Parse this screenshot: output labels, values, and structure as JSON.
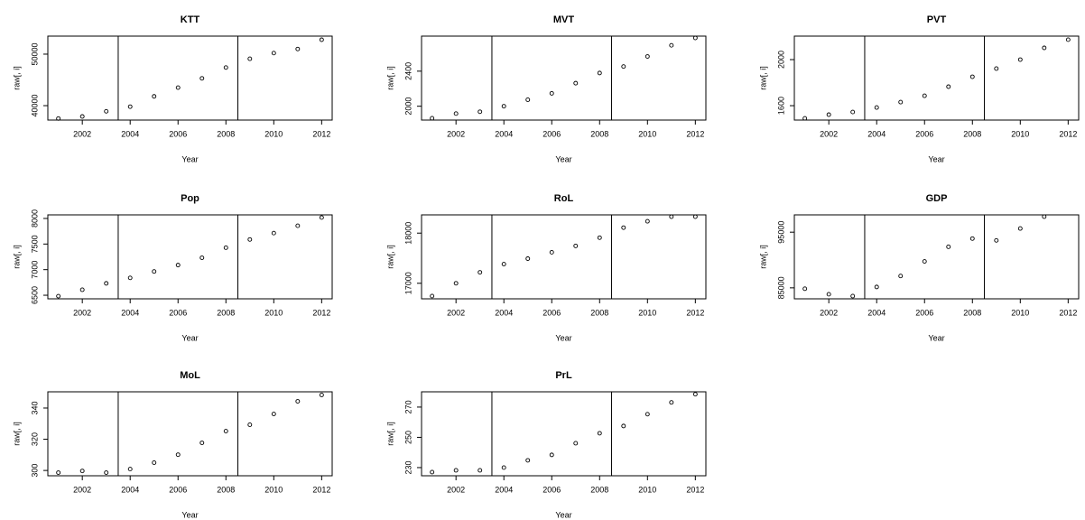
{
  "chart_data": [
    {
      "type": "scatter",
      "title": "KTT",
      "x_label": "Year",
      "y_label": "raw[, i]",
      "x": [
        2001,
        2002,
        2003,
        2004,
        2005,
        2006,
        2007,
        2008,
        2009,
        2010,
        2011,
        2012
      ],
      "values": [
        37500,
        37900,
        38900,
        39800,
        41800,
        43500,
        45300,
        47400,
        49100,
        50200,
        51000,
        52800
      ],
      "xlim": [
        2000.56,
        2012.44
      ],
      "ylim": [
        37200,
        53500
      ],
      "xticks": [
        2002,
        2004,
        2006,
        2008,
        2010,
        2012
      ],
      "yticks": [
        40000,
        50000
      ],
      "vlines": [
        2003.5,
        2008.5
      ],
      "color": "#000000"
    },
    {
      "type": "scatter",
      "title": "MVT",
      "x_label": "Year",
      "y_label": "raw[, i]",
      "x": [
        2001,
        2002,
        2003,
        2004,
        2005,
        2006,
        2007,
        2008,
        2009,
        2010,
        2011,
        2012
      ],
      "values": [
        1863,
        1916,
        1937,
        2000,
        2074,
        2147,
        2263,
        2379,
        2453,
        2568,
        2695,
        2779
      ],
      "xlim": [
        2000.56,
        2012.44
      ],
      "ylim": [
        1842,
        2800
      ],
      "xticks": [
        2002,
        2004,
        2006,
        2008,
        2010,
        2012
      ],
      "yticks": [
        2000,
        2400
      ],
      "vlines": [
        2003.5,
        2008.5
      ],
      "color": "#000000"
    },
    {
      "type": "scatter",
      "title": "PVT",
      "x_label": "Year",
      "y_label": "raw[, i]",
      "x": [
        2001,
        2002,
        2003,
        2004,
        2005,
        2006,
        2007,
        2008,
        2009,
        2010,
        2011,
        2012
      ],
      "values": [
        1490,
        1522,
        1545,
        1584,
        1631,
        1686,
        1765,
        1851,
        1922,
        2000,
        2102,
        2173
      ],
      "xlim": [
        2000.56,
        2012.44
      ],
      "ylim": [
        1475,
        2204
      ],
      "xticks": [
        2002,
        2004,
        2006,
        2008,
        2010,
        2012
      ],
      "yticks": [
        1600,
        2000
      ],
      "vlines": [
        2003.5,
        2008.5
      ],
      "color": "#000000"
    },
    {
      "type": "scatter",
      "title": "Pop",
      "x_label": "Year",
      "y_label": "raw[, i]",
      "x": [
        2001,
        2002,
        2003,
        2004,
        2005,
        2006,
        2007,
        2008,
        2009,
        2010,
        2011,
        2012
      ],
      "values": [
        6482,
        6607,
        6732,
        6839,
        6964,
        7089,
        7232,
        7429,
        7589,
        7714,
        7857,
        8018
      ],
      "xlim": [
        2000.56,
        2012.44
      ],
      "ylim": [
        6430,
        8070
      ],
      "xticks": [
        2002,
        2004,
        2006,
        2008,
        2010,
        2012
      ],
      "yticks": [
        6500,
        7000,
        7500,
        8000
      ],
      "vlines": [
        2003.5,
        2008.5
      ],
      "color": "#000000"
    },
    {
      "type": "scatter",
      "title": "RoL",
      "x_label": "Year",
      "y_label": "raw[, i]",
      "x": [
        2001,
        2002,
        2003,
        2004,
        2005,
        2006,
        2007,
        2008,
        2009,
        2010,
        2011,
        2012
      ],
      "values": [
        16745,
        17000,
        17218,
        17382,
        17491,
        17618,
        17745,
        17909,
        18109,
        18236,
        18327,
        18327
      ],
      "xlim": [
        2000.56,
        2012.44
      ],
      "ylim": [
        16690,
        18364
      ],
      "xticks": [
        2002,
        2004,
        2006,
        2008,
        2010,
        2012
      ],
      "yticks": [
        17000,
        18000
      ],
      "vlines": [
        2003.5,
        2008.5
      ],
      "color": "#000000"
    },
    {
      "type": "scatter",
      "title": "GDP",
      "x_label": "Year",
      "y_label": "raw[, i]",
      "x": [
        2001,
        2002,
        2003,
        2004,
        2005,
        2006,
        2007,
        2008,
        2009,
        2010,
        2011,
        2012
      ],
      "values": [
        84840,
        83850,
        83520,
        85160,
        87130,
        89750,
        92380,
        93850,
        93520,
        95660,
        97790,
        null
      ],
      "xlim": [
        2000.56,
        2012.44
      ],
      "ylim": [
        83030,
        98110
      ],
      "xticks": [
        2002,
        2004,
        2006,
        2008,
        2010,
        2012
      ],
      "yticks": [
        85000,
        95000
      ],
      "vlines": [
        2003.5,
        2008.5
      ],
      "color": "#000000"
    },
    {
      "type": "scatter",
      "title": "MoL",
      "x_label": "Year",
      "y_label": "raw[, i]",
      "x": [
        2001,
        2002,
        2003,
        2004,
        2005,
        2006,
        2007,
        2008,
        2009,
        2010,
        2011,
        2012
      ],
      "values": [
        298.6,
        299.7,
        298.6,
        300.9,
        305,
        310.1,
        317.7,
        325.2,
        329.3,
        336.2,
        344.3,
        348.4
      ],
      "xlim": [
        2000.56,
        2012.44
      ],
      "ylim": [
        296.6,
        350.4
      ],
      "xticks": [
        2002,
        2004,
        2006,
        2008,
        2010,
        2012
      ],
      "yticks": [
        300,
        320,
        340
      ],
      "vlines": [
        2003.5,
        2008.5
      ],
      "color": "#000000"
    },
    {
      "type": "scatter",
      "title": "PrL",
      "x_label": "Year",
      "y_label": "raw[, i]",
      "x": [
        2001,
        2002,
        2003,
        2004,
        2005,
        2006,
        2007,
        2008,
        2009,
        2010,
        2011,
        2012
      ],
      "values": [
        227,
        228.2,
        228.2,
        230,
        234.8,
        238.4,
        246.1,
        252.7,
        257.5,
        265.3,
        273.1,
        278.5
      ],
      "xlim": [
        2000.56,
        2012.44
      ],
      "ylim": [
        224.6,
        280.1
      ],
      "xticks": [
        2002,
        2004,
        2006,
        2008,
        2010,
        2012
      ],
      "yticks": [
        230,
        250,
        270
      ],
      "vlines": [
        2003.5,
        2008.5
      ],
      "color": "#000000"
    }
  ]
}
